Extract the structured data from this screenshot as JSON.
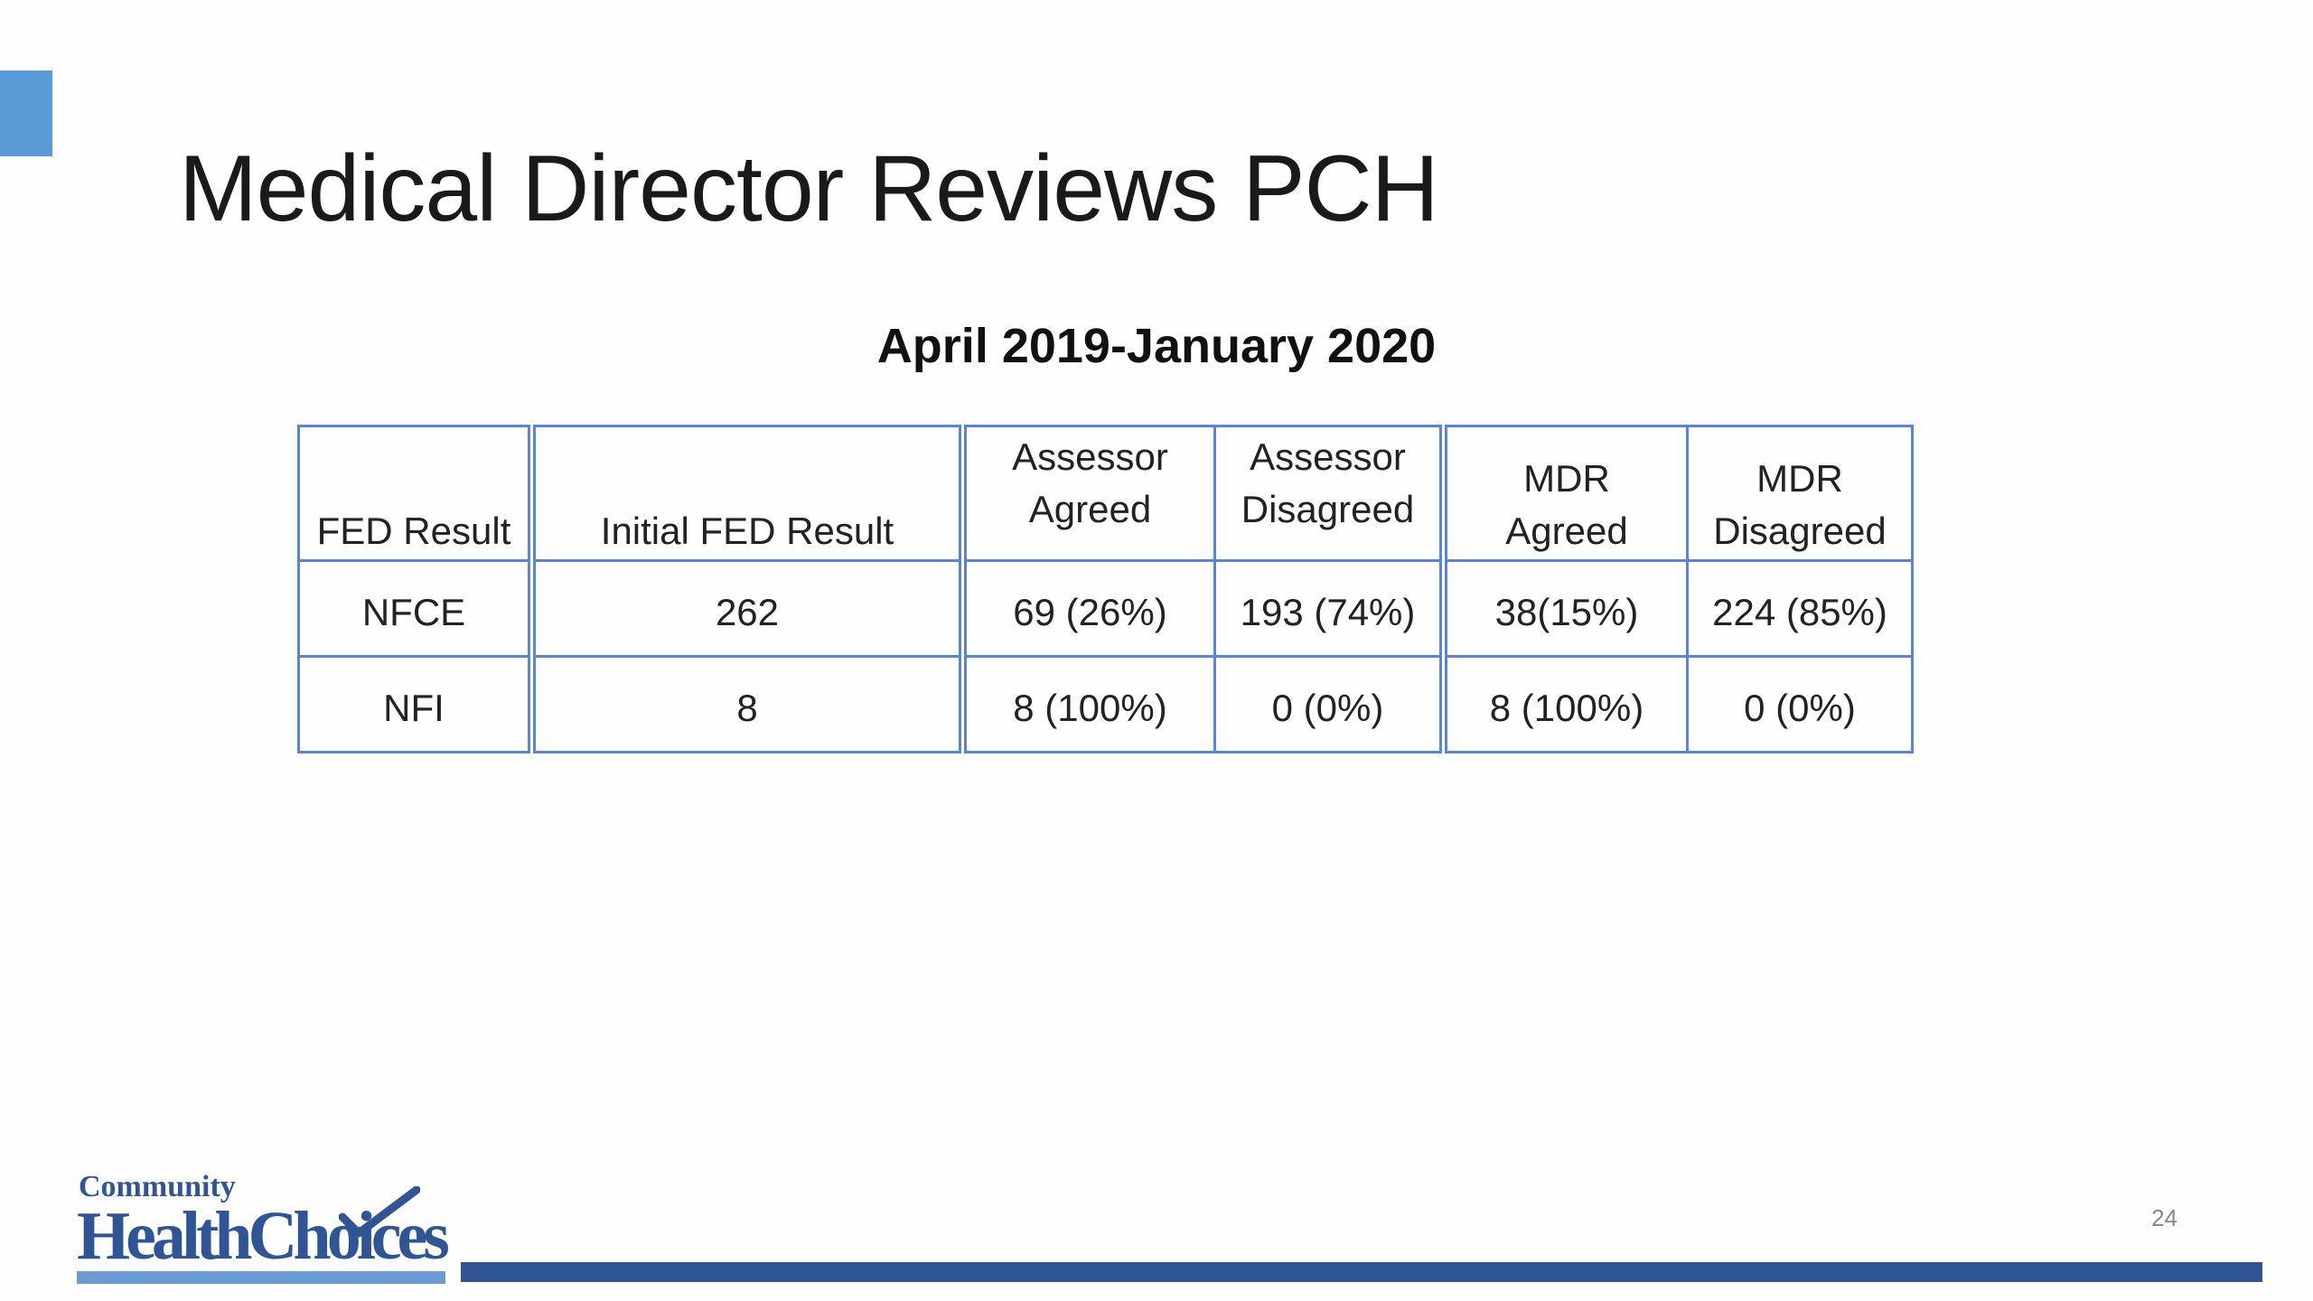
{
  "slide": {
    "title": "Medical Director Reviews PCH",
    "subtitle": "April 2019-January 2020",
    "page_number": "24"
  },
  "table": {
    "headers": [
      "FED Result",
      "Initial FED Result",
      "Assessor\nAgreed",
      "Assessor\nDisagreed",
      "MDR\nAgreed",
      "MDR\nDisagreed"
    ],
    "rows": [
      [
        "NFCE",
        "262",
        "69 (26%)",
        "193 (74%)",
        "38(15%)",
        "224 (85%)"
      ],
      [
        "NFI",
        "8",
        "8 (100%)",
        "0 (0%)",
        "8 (100%)",
        "0 (0%)"
      ]
    ]
  },
  "logo": {
    "line1": "Community",
    "line2": "HealthChoices"
  },
  "colors": {
    "accent": "#5b9bd5",
    "table_border": "#5b84d6",
    "brand_blue": "#2f5597",
    "logo_bar": "#6a9bd3"
  }
}
